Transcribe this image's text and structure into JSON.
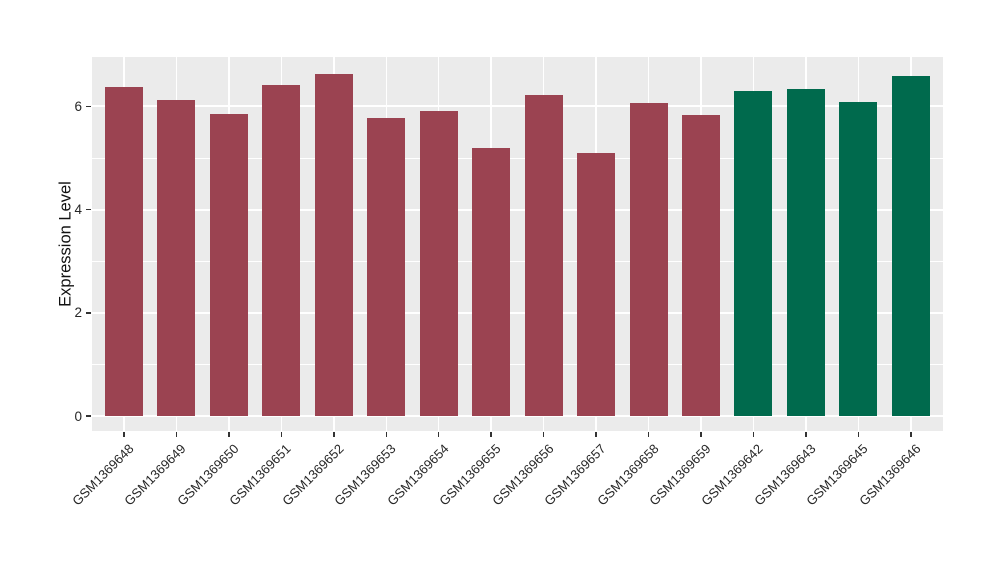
{
  "chart_data": {
    "type": "bar",
    "title": "",
    "xlabel": "",
    "ylabel": "Expression Level",
    "categories": [
      "GSM1369648",
      "GSM1369649",
      "GSM1369650",
      "GSM1369651",
      "GSM1369652",
      "GSM1369653",
      "GSM1369654",
      "GSM1369655",
      "GSM1369656",
      "GSM1369657",
      "GSM1369658",
      "GSM1369659",
      "GSM1369642",
      "GSM1369643",
      "GSM1369645",
      "GSM1369646"
    ],
    "values": [
      6.38,
      6.12,
      5.86,
      6.41,
      6.62,
      5.78,
      5.91,
      5.19,
      6.23,
      5.1,
      6.07,
      5.84,
      6.29,
      6.34,
      6.08,
      6.59
    ],
    "bar_colors": [
      "#9B4351",
      "#9B4351",
      "#9B4351",
      "#9B4351",
      "#9B4351",
      "#9B4351",
      "#9B4351",
      "#9B4351",
      "#9B4351",
      "#9B4351",
      "#9B4351",
      "#9B4351",
      "#006A4D",
      "#006A4D",
      "#006A4D",
      "#006A4D"
    ],
    "palette": {
      "group_1": "#9B4351",
      "group_2": "#006A4D"
    },
    "yticks": [
      0,
      2,
      4,
      6
    ],
    "minor_yticks": [
      1,
      3,
      5,
      7
    ],
    "ylim": [
      0,
      6.96
    ],
    "grid": "on",
    "legend_position": "none",
    "panel_background": "#EBEBEB",
    "grid_color": "#FFFFFF"
  }
}
